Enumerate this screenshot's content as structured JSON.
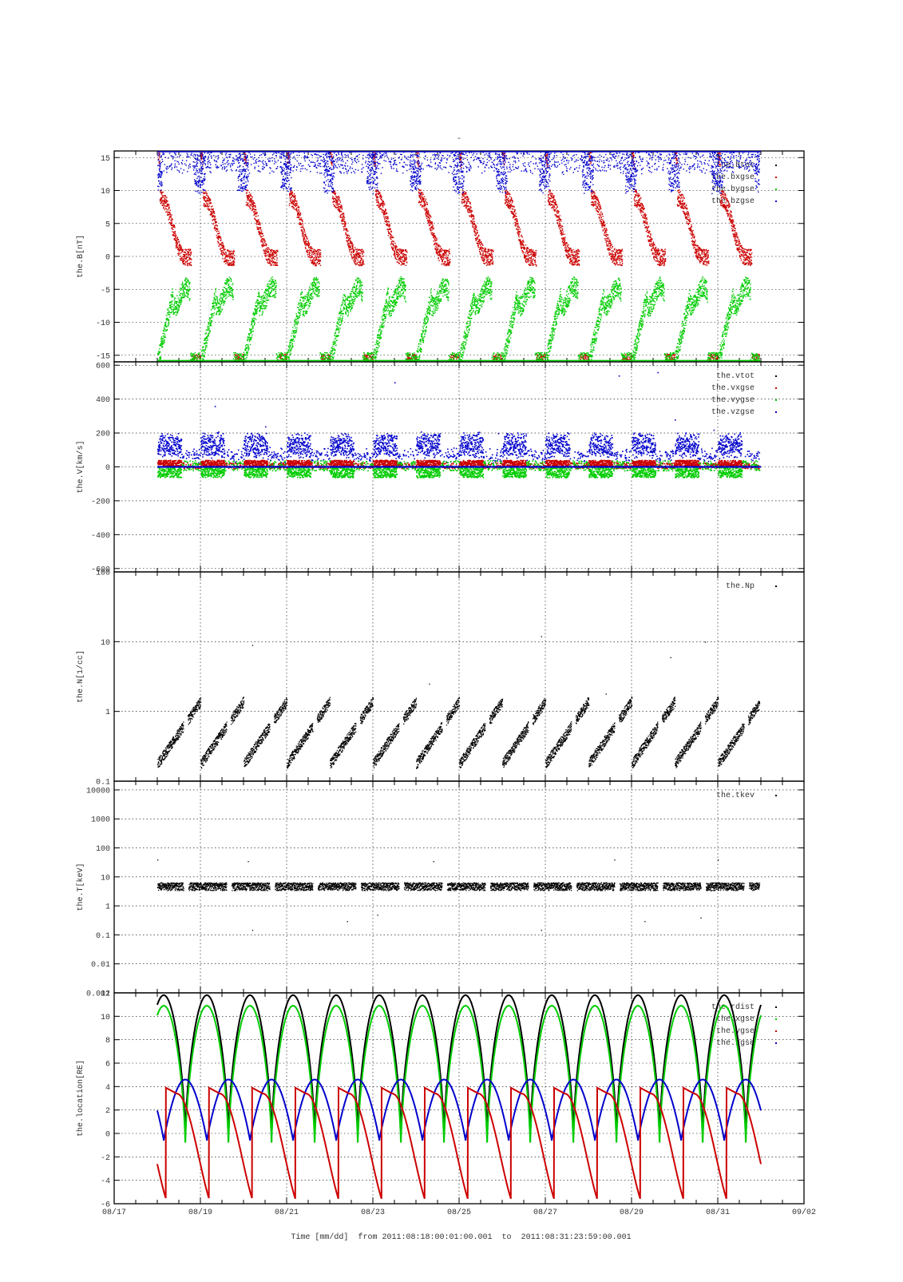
{
  "figure": {
    "title": "-",
    "time_label": "Time [mm/dd]",
    "range_from_word": "from",
    "range_start": "2011:08:18:00:01:00.001",
    "range_to_word": "to",
    "range_end": "2011:08:31:23:59:00.001"
  },
  "chart_data": [
    {
      "type": "scatter",
      "ylabel": "the.B[nT]",
      "ylim": [
        -16,
        16
      ],
      "yticks": [
        -15,
        -10,
        -5,
        0,
        5,
        10,
        15
      ],
      "grid": true,
      "legend_position": "top-right",
      "series": [
        {
          "name": "the.btot",
          "color": "#000000",
          "note": "mostly off-scale above 16"
        },
        {
          "name": "the.bxgse",
          "color": "#cc0000",
          "pattern": "sawtooth_descending",
          "range": [
            -16,
            16
          ]
        },
        {
          "name": "the.bygse",
          "color": "#00cc00",
          "pattern": "sawtooth_rising",
          "range": [
            -16,
            -3
          ]
        },
        {
          "name": "the.bzgse",
          "color": "#0000cc",
          "pattern": "spikes_from_top",
          "range": [
            8,
            16
          ]
        }
      ]
    },
    {
      "type": "scatter",
      "ylabel": "the.V[km/s]",
      "ylim": [
        -620,
        620
      ],
      "yticks": [
        -600,
        -400,
        -200,
        0,
        200,
        400,
        600
      ],
      "grid": true,
      "legend_position": "top-right",
      "series": [
        {
          "name": "the.vtot",
          "color": "#000000"
        },
        {
          "name": "the.vxgse",
          "color": "#cc0000",
          "range": [
            -20,
            50
          ]
        },
        {
          "name": "the.vygse",
          "color": "#00cc00",
          "range": [
            -100,
            90
          ]
        },
        {
          "name": "the.vzgse",
          "color": "#0000cc",
          "range": [
            -140,
            550
          ]
        }
      ]
    },
    {
      "type": "scatter",
      "ylabel": "the.N[1/cc]",
      "yscale": "log",
      "ylim": [
        0.1,
        100
      ],
      "yticks": [
        0.1,
        1,
        10,
        100
      ],
      "ytick_labels": [
        "0.1",
        "1",
        "10",
        "100"
      ],
      "grid": true,
      "legend_position": "top-right",
      "series": [
        {
          "name": "the.Np",
          "color": "#000000",
          "range": [
            0.1,
            12
          ]
        }
      ]
    },
    {
      "type": "scatter",
      "ylabel": "the.T[keV]",
      "yscale": "log",
      "ylim": [
        0.001,
        20000
      ],
      "yticks": [
        0.001,
        0.01,
        0.1,
        1,
        10,
        100,
        1000,
        10000
      ],
      "ytick_labels": [
        "0.001",
        "0.01",
        "0.1",
        "1",
        "10",
        "100",
        "1000",
        "10000"
      ],
      "grid": true,
      "legend_position": "top-right",
      "series": [
        {
          "name": "the.tkev",
          "color": "#000000",
          "typical": 5,
          "range": [
            0.1,
            50
          ]
        }
      ]
    },
    {
      "type": "line",
      "ylabel": "the.location[RE]",
      "ylim": [
        -6,
        12
      ],
      "yticks": [
        -6,
        -4,
        -2,
        0,
        2,
        4,
        6,
        8,
        10,
        12
      ],
      "ytick_labels": [
        "-6",
        "-4",
        "-2",
        "0",
        "2",
        "4",
        "6",
        "8",
        "10",
        "12"
      ],
      "grid": true,
      "legend_position": "top-right",
      "orbit_period_days": 1.0,
      "series": [
        {
          "name": "the.rdist",
          "color": "#000000",
          "min": -0.5,
          "max": 11.8
        },
        {
          "name": "the.xgse",
          "color": "#00cc00",
          "min": -1.3,
          "max": 10.9
        },
        {
          "name": "the.ygse",
          "color": "#cc0000",
          "min": -4.4,
          "max": 3.9
        },
        {
          "name": "the.zgse",
          "color": "#0000cc",
          "min": -0.6,
          "max": 4.6
        }
      ]
    }
  ],
  "x_axis": {
    "start": "08/17",
    "end": "09/02",
    "data_start": "08/18",
    "data_end": "08/31 24:00",
    "tick_labels": [
      "08/17",
      "08/19",
      "08/21",
      "08/23",
      "08/25",
      "08/27",
      "08/29",
      "08/31",
      "09/02"
    ]
  }
}
